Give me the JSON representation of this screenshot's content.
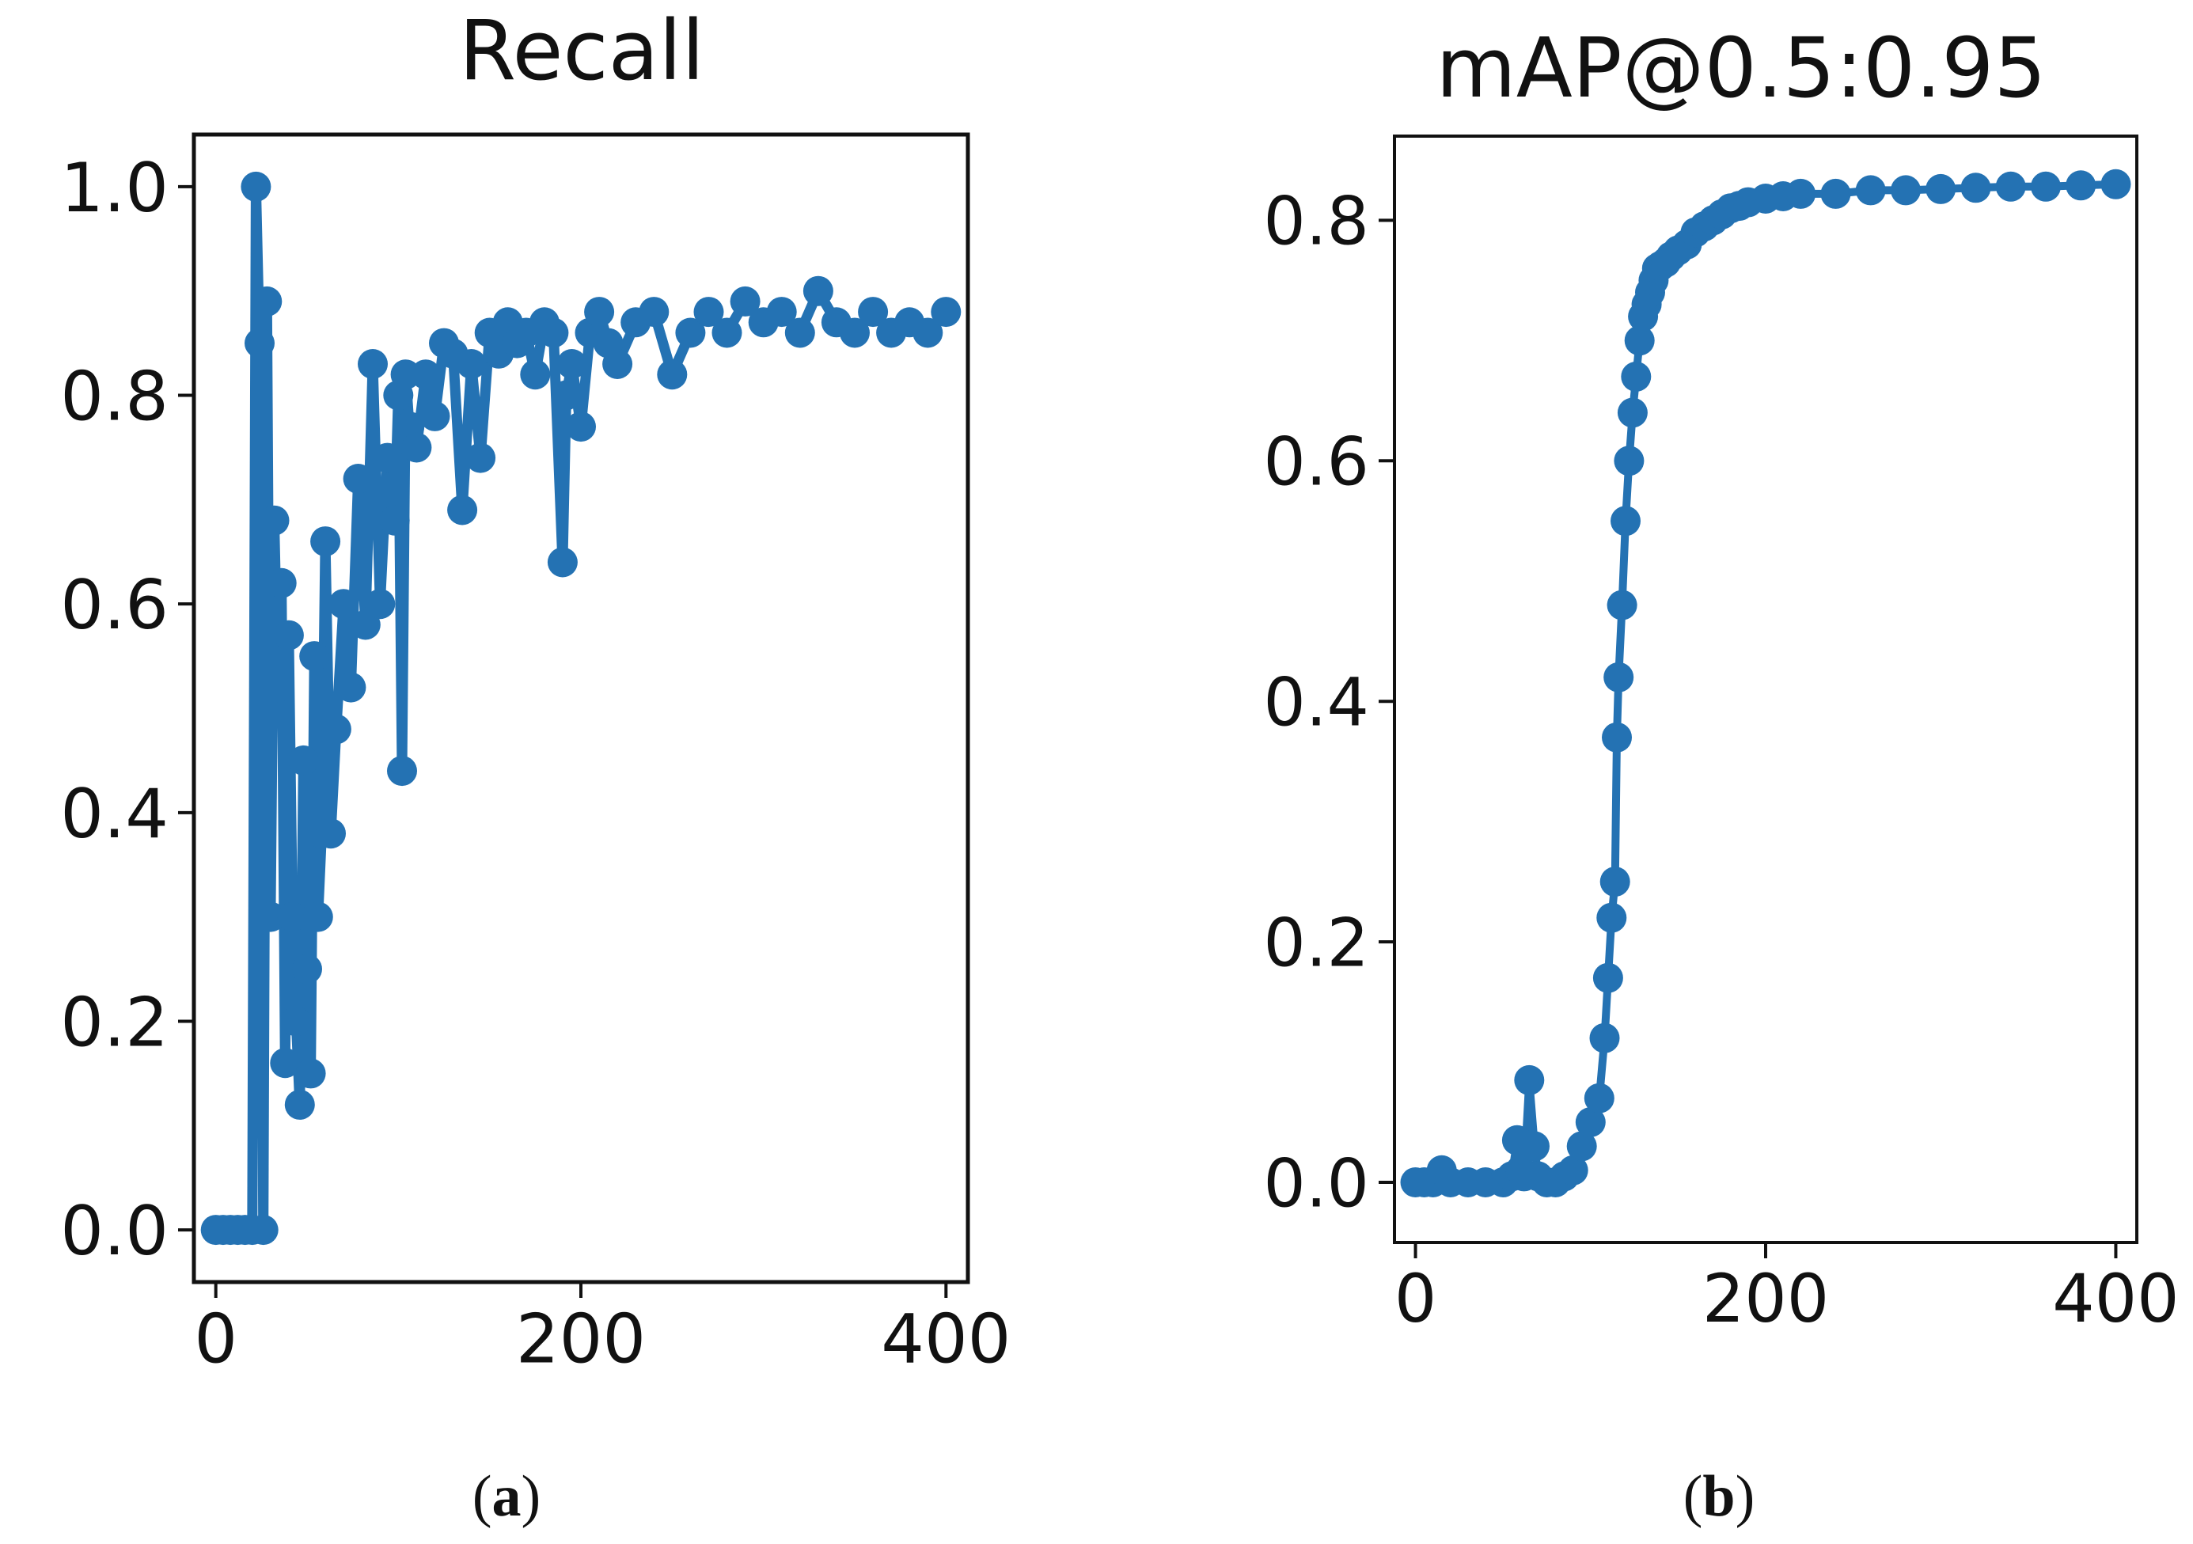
{
  "chart_data": [
    {
      "panel_label": "a",
      "type": "line",
      "title": "Recall",
      "xlabel": "",
      "ylabel": "",
      "xlim": [
        -12,
        412
      ],
      "ylim": [
        -0.05,
        1.05
      ],
      "xticks": [
        0,
        200,
        400
      ],
      "yticks": [
        0.0,
        0.2,
        0.4,
        0.6,
        0.8,
        1.0
      ],
      "xtick_labels": [
        "0",
        "200",
        "400"
      ],
      "ytick_labels": [
        "0.0",
        "0.2",
        "0.4",
        "0.6",
        "0.8",
        "1.0"
      ],
      "grid": false,
      "marker": "circle",
      "color": "#2472b3",
      "series": [
        {
          "name": "Recall",
          "x": [
            0,
            4,
            8,
            12,
            16,
            20,
            22,
            24,
            26,
            28,
            30,
            32,
            34,
            36,
            38,
            40,
            42,
            44,
            46,
            48,
            50,
            52,
            54,
            56,
            58,
            60,
            63,
            66,
            70,
            74,
            78,
            82,
            86,
            90,
            94,
            98,
            100,
            102,
            104,
            106,
            110,
            115,
            120,
            125,
            130,
            135,
            140,
            145,
            150,
            155,
            160,
            165,
            170,
            175,
            180,
            185,
            190,
            192,
            195,
            200,
            205,
            210,
            215,
            220,
            230,
            240,
            250,
            260,
            270,
            280,
            290,
            300,
            310,
            320,
            330,
            340,
            350,
            360,
            370,
            380,
            390,
            400
          ],
          "values": [
            0.0,
            0.0,
            0.0,
            0.0,
            0.0,
            0.0,
            1.0,
            0.85,
            0.0,
            0.89,
            0.3,
            0.68,
            0.52,
            0.62,
            0.16,
            0.57,
            0.3,
            0.2,
            0.12,
            0.45,
            0.25,
            0.15,
            0.55,
            0.3,
            0.38,
            0.66,
            0.38,
            0.48,
            0.6,
            0.52,
            0.72,
            0.58,
            0.83,
            0.6,
            0.74,
            0.68,
            0.8,
            0.44,
            0.82,
            0.77,
            0.75,
            0.82,
            0.78,
            0.85,
            0.84,
            0.69,
            0.83,
            0.74,
            0.86,
            0.84,
            0.87,
            0.85,
            0.86,
            0.82,
            0.87,
            0.86,
            0.64,
            0.8,
            0.83,
            0.77,
            0.86,
            0.88,
            0.85,
            0.83,
            0.87,
            0.88,
            0.82,
            0.86,
            0.88,
            0.86,
            0.89,
            0.87,
            0.88,
            0.86,
            0.9,
            0.87,
            0.86,
            0.88,
            0.86,
            0.87,
            0.86,
            0.88
          ]
        }
      ]
    },
    {
      "panel_label": "b",
      "type": "line",
      "title": "mAP@0.5:0.95",
      "xlabel": "",
      "ylabel": "",
      "xlim": [
        -12,
        412
      ],
      "ylim": [
        -0.05,
        0.87
      ],
      "xticks": [
        0,
        200,
        400
      ],
      "yticks": [
        0.0,
        0.2,
        0.4,
        0.6,
        0.8
      ],
      "xtick_labels": [
        "0",
        "200",
        "400"
      ],
      "ytick_labels": [
        "0.0",
        "0.2",
        "0.4",
        "0.6",
        "0.8"
      ],
      "grid": false,
      "marker": "circle",
      "color": "#2472b3",
      "series": [
        {
          "name": "mAP@0.5:0.95",
          "x": [
            0,
            5,
            10,
            15,
            20,
            30,
            40,
            50,
            55,
            58,
            60,
            62,
            65,
            68,
            70,
            75,
            80,
            85,
            90,
            95,
            100,
            105,
            108,
            110,
            112,
            114,
            115,
            116,
            118,
            120,
            122,
            124,
            126,
            128,
            130,
            132,
            134,
            136,
            138,
            140,
            143,
            146,
            150,
            155,
            160,
            165,
            170,
            175,
            180,
            185,
            190,
            200,
            210,
            220,
            240,
            260,
            280,
            300,
            320,
            340,
            360,
            380,
            400
          ],
          "values": [
            0.0,
            0.0,
            0.0,
            0.01,
            0.0,
            0.0,
            0.0,
            0.0,
            0.005,
            0.035,
            0.01,
            0.005,
            0.085,
            0.03,
            0.005,
            0.0,
            0.0,
            0.005,
            0.01,
            0.03,
            0.05,
            0.07,
            0.12,
            0.17,
            0.22,
            0.25,
            0.37,
            0.42,
            0.48,
            0.55,
            0.6,
            0.64,
            0.67,
            0.7,
            0.72,
            0.73,
            0.74,
            0.75,
            0.76,
            0.762,
            0.765,
            0.77,
            0.775,
            0.78,
            0.79,
            0.795,
            0.8,
            0.805,
            0.81,
            0.812,
            0.815,
            0.818,
            0.82,
            0.822,
            0.822,
            0.825,
            0.825,
            0.826,
            0.827,
            0.828,
            0.828,
            0.829,
            0.83
          ]
        }
      ]
    }
  ],
  "captions": {
    "a": {
      "open": "(",
      "letter": "a",
      "close": ")"
    },
    "b": {
      "open": "(",
      "letter": "b",
      "close": ")"
    }
  }
}
